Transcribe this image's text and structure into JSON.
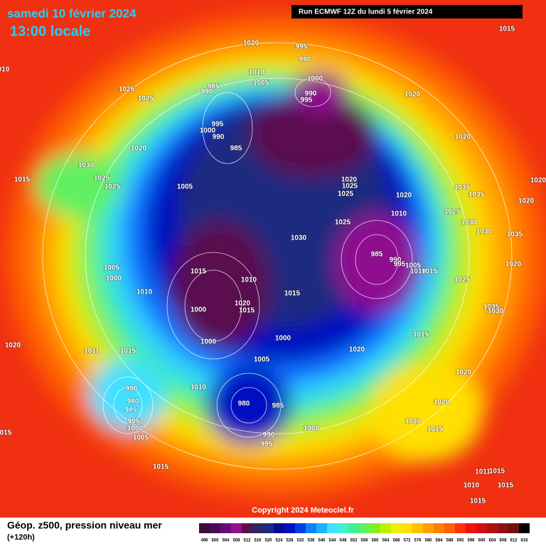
{
  "header": {
    "title": "samedi 10 février 2024",
    "subtitle": "13:00 locale",
    "run": "Run ECMWF 12Z du lundi 5 février 2024"
  },
  "footer": {
    "label": "Géop. z500, pression niveau mer",
    "lead": "(+120h)",
    "copyright": "Copyright 2024 Meteociel.fr"
  },
  "colorbar": {
    "values": [
      496,
      500,
      504,
      508,
      512,
      516,
      520,
      524,
      528,
      532,
      536,
      540,
      544,
      548,
      552,
      556,
      560,
      564,
      568,
      572,
      576,
      580,
      584,
      588,
      592,
      596,
      600,
      604,
      608,
      612,
      616
    ],
    "colors": [
      "#3c0a3c",
      "#4a0a55",
      "#6a0a75",
      "#901090",
      "#5a1050",
      "#2a2a60",
      "#1a2a80",
      "#0a0a90",
      "#0010c0",
      "#0040e0",
      "#1080ff",
      "#20b0ff",
      "#40e0ff",
      "#40f0d0",
      "#40f090",
      "#60f060",
      "#80f020",
      "#c0f000",
      "#f0f000",
      "#ffe000",
      "#ffc000",
      "#ffa000",
      "#ff8000",
      "#ff6000",
      "#ff3000",
      "#f01010",
      "#d01010",
      "#b01010",
      "#901010",
      "#701010",
      "#000000"
    ]
  },
  "isobar_labels": [
    "1015",
    "1020",
    "995",
    "990",
    "010",
    "1010",
    "1000",
    "985",
    "1005",
    "990",
    "990",
    "995",
    "1025",
    "1025",
    "1020",
    "995",
    "1000",
    "990",
    "985",
    "1020",
    "1020",
    "1030",
    "1025",
    "1025",
    "1015",
    "1005",
    "1020",
    "1025",
    "1025",
    "1020",
    "1035",
    "1035",
    "1020",
    "1025",
    "1010",
    "1025",
    "1020",
    "1030",
    "1030",
    "1035",
    "1030",
    "985",
    "990",
    "995",
    "1005",
    "1010",
    "1015",
    "1005",
    "1000",
    "1015",
    "1010",
    "1020",
    "1025",
    "1010",
    "1015",
    "1020",
    "1015",
    "1000",
    "1035",
    "1030",
    "1000",
    "1015",
    "1020",
    "1000",
    "1011",
    "1015",
    "1005",
    "1020",
    "1020",
    "990",
    "1010",
    "980",
    "985",
    "980",
    "985",
    "1020",
    "995",
    "1000",
    "1020",
    "1015",
    "1005",
    "990",
    "995",
    "1000",
    "015",
    "1015",
    "1011",
    "1015",
    "1010",
    "1015",
    "1015"
  ]
}
